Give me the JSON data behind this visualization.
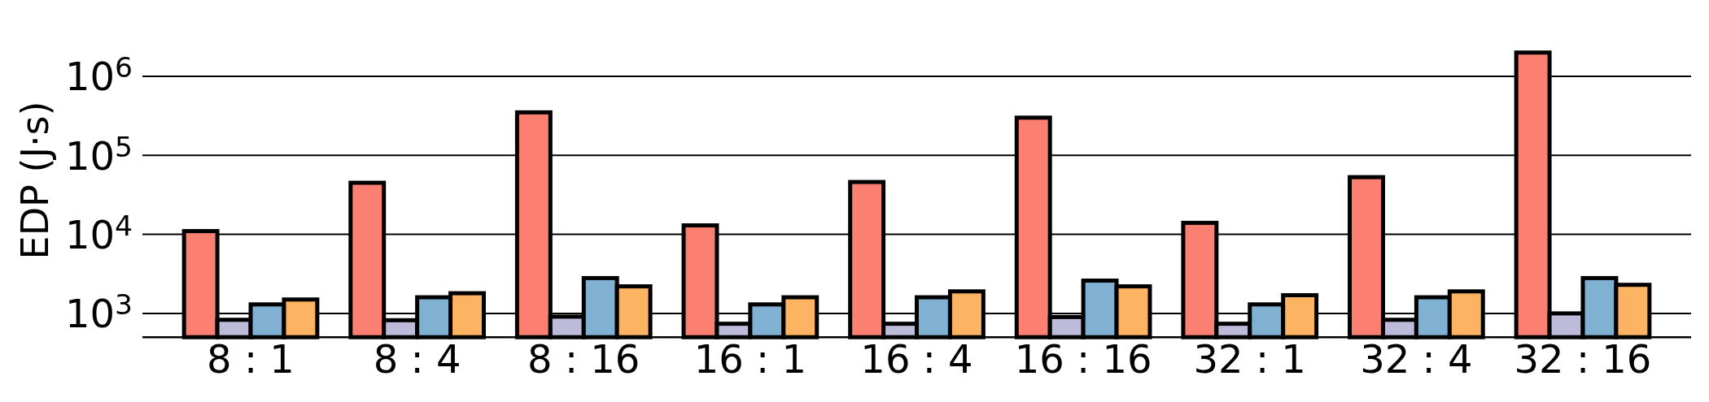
{
  "chart_data": {
    "type": "bar",
    "ylabel": "EDP (J·s)",
    "categories": [
      "8 : 1",
      "8 : 4",
      "8 : 16",
      "16 : 1",
      "16 : 4",
      "16 : 16",
      "32 : 1",
      "32 : 4",
      "32 : 16"
    ],
    "series": [
      {
        "color": "#fb8072",
        "values": [
          11000,
          45000,
          350000,
          13000,
          46000,
          300000,
          14000,
          53000,
          2000000
        ]
      },
      {
        "color": "#bebada",
        "values": [
          830,
          820,
          910,
          740,
          740,
          900,
          740,
          830,
          1000
        ]
      },
      {
        "color": "#80b1d3",
        "values": [
          1300,
          1600,
          2800,
          1300,
          1600,
          2600,
          1300,
          1600,
          2800
        ]
      },
      {
        "color": "#fdb462",
        "values": [
          1500,
          1800,
          2200,
          1600,
          1900,
          2200,
          1700,
          1900,
          2300
        ]
      }
    ],
    "log": true,
    "ylim": [
      500,
      2000000
    ],
    "yticks": [
      {
        "value": 1000,
        "label": "10$^{3}$"
      },
      {
        "value": 10000,
        "label": "10$^{4}$"
      },
      {
        "value": 100000,
        "label": "10$^{5}$"
      },
      {
        "value": 1000000,
        "label": "10$^{6}$"
      }
    ],
    "grid": "y"
  }
}
